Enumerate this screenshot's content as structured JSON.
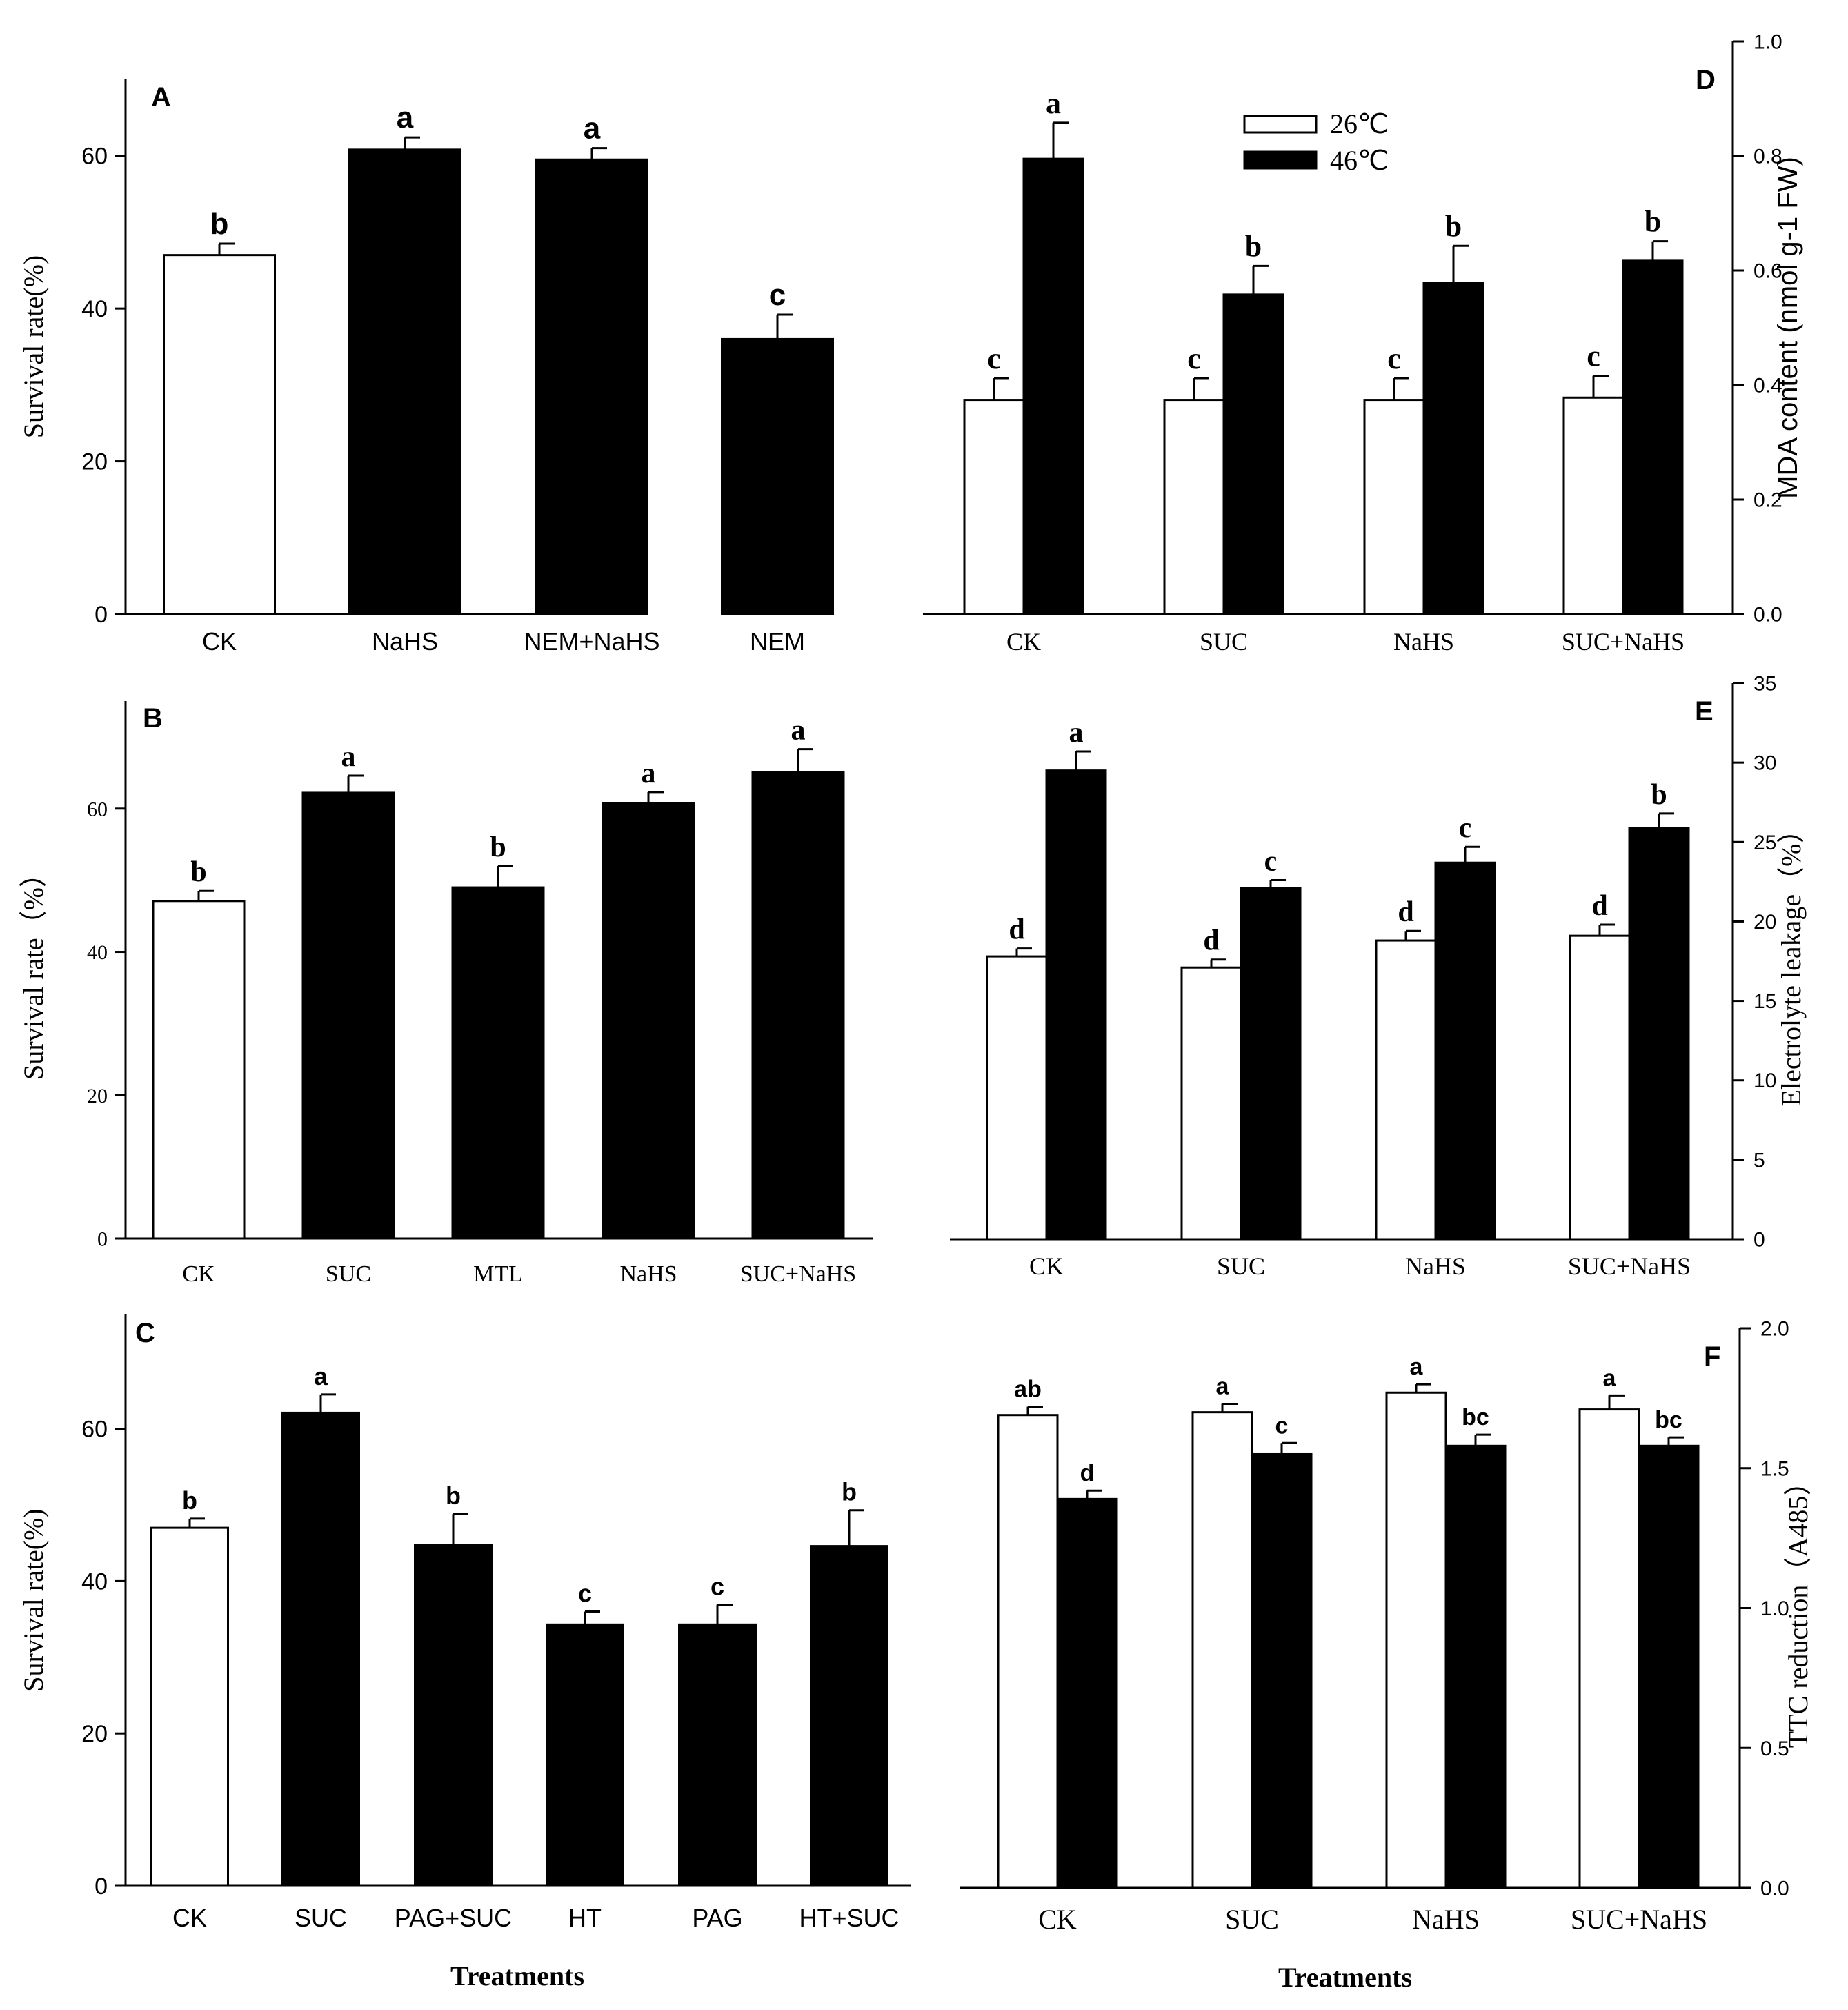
{
  "figure": {
    "bottom_labels": {
      "left": "Treatments",
      "right": "Treatments"
    }
  },
  "legend": {
    "items": [
      {
        "label": "26℃",
        "color": "#ffffff"
      },
      {
        "label": "46℃",
        "color": "#000000"
      }
    ]
  },
  "chart_data": [
    {
      "id": "A",
      "panel_label": "A",
      "type": "bar",
      "font": "sans",
      "categories": [
        "CK",
        "NaHS",
        "NEM+NaHS",
        "NEM"
      ],
      "series": [
        {
          "values": [
            47,
            60.8,
            59.5,
            36
          ],
          "errors": [
            1.5,
            1.6,
            1.5,
            3.2
          ],
          "letters": [
            "b",
            "a",
            "a",
            "c"
          ],
          "colors": [
            "#ffffff",
            "#000000",
            "#000000",
            "#000000"
          ]
        }
      ],
      "ylabel": "Survival rate(%)",
      "ylim": [
        0,
        70
      ],
      "yticks": [
        0,
        20,
        40,
        60
      ],
      "axis_side": "left"
    },
    {
      "id": "B",
      "panel_label": "B",
      "type": "bar",
      "font": "serif",
      "categories": [
        "CK",
        "SUC",
        "MTL",
        "NaHS",
        "SUC+NaHS"
      ],
      "series": [
        {
          "values": [
            47.1,
            62.2,
            49,
            60.8,
            65.1
          ],
          "errors": [
            1.4,
            2.4,
            3,
            1.5,
            3.2
          ],
          "letters": [
            "b",
            "a",
            "b",
            "a",
            "a"
          ],
          "colors": [
            "#ffffff",
            "#000000",
            "#000000",
            "#000000",
            "#000000"
          ]
        }
      ],
      "ylabel": "Survival rate（%）",
      "ylim": [
        0,
        75
      ],
      "yticks": [
        0,
        20,
        40,
        60
      ],
      "axis_side": "left"
    },
    {
      "id": "C",
      "panel_label": "C",
      "type": "bar",
      "font": "sans",
      "categories": [
        "CK",
        "SUC",
        "PAG+SUC",
        "HT",
        "PAG",
        "HT+SUC"
      ],
      "series": [
        {
          "values": [
            47,
            62.1,
            44.7,
            34.3,
            34.3,
            44.6
          ],
          "errors": [
            1.2,
            2.4,
            4.1,
            1.7,
            2.6,
            4.7
          ],
          "letters": [
            "b",
            "a",
            "b",
            "c",
            "c",
            "b"
          ],
          "colors": [
            "#ffffff",
            "#000000",
            "#000000",
            "#000000",
            "#000000",
            "#000000"
          ]
        }
      ],
      "ylabel": "Survival rate(%)",
      "ylim": [
        0,
        75
      ],
      "yticks": [
        0,
        20,
        40,
        60
      ],
      "axis_side": "left"
    },
    {
      "id": "D",
      "panel_label": "D",
      "type": "bar",
      "font": "serif",
      "categories": [
        "CK",
        "SUC",
        "NaHS",
        "SUC+NaHS"
      ],
      "series": [
        {
          "name": "26℃",
          "values": [
            0.374,
            0.374,
            0.374,
            0.378
          ],
          "errors": [
            0.038,
            0.038,
            0.038,
            0.038
          ],
          "letters": [
            "c",
            "c",
            "c",
            "c"
          ],
          "color": "#ffffff"
        },
        {
          "name": "46℃",
          "values": [
            0.795,
            0.558,
            0.578,
            0.617
          ],
          "errors": [
            0.063,
            0.05,
            0.065,
            0.034
          ],
          "letters": [
            "a",
            "b",
            "b",
            "b"
          ],
          "color": "#000000"
        }
      ],
      "ylabel": "MDA content (nmol g-1 FW)",
      "ylim": [
        0,
        1.0
      ],
      "yticks": [
        0.0,
        0.2,
        0.4,
        0.6,
        0.8,
        1.0
      ],
      "axis_side": "right"
    },
    {
      "id": "E",
      "panel_label": "E",
      "type": "bar",
      "font": "serif",
      "categories": [
        "CK",
        "SUC",
        "NaHS",
        "SUC+NaHS"
      ],
      "series": [
        {
          "name": "26℃",
          "values": [
            17.8,
            17.1,
            18.8,
            19.1
          ],
          "errors": [
            0.5,
            0.5,
            0.6,
            0.7
          ],
          "letters": [
            "d",
            "d",
            "d",
            "d"
          ],
          "color": "#ffffff"
        },
        {
          "name": "46℃",
          "values": [
            29.5,
            22.1,
            23.7,
            25.9
          ],
          "errors": [
            1.2,
            0.5,
            1.0,
            0.9
          ],
          "letters": [
            "a",
            "c",
            "c",
            "b"
          ],
          "color": "#000000"
        }
      ],
      "ylabel": "Electrolyte leakage（%）",
      "ylim": [
        0,
        35
      ],
      "yticks": [
        0,
        5,
        10,
        15,
        20,
        25,
        30,
        35
      ],
      "axis_side": "right"
    },
    {
      "id": "F",
      "panel_label": "F",
      "type": "bar",
      "font": "mixed",
      "categories": [
        "CK",
        "SUC",
        "NaHS",
        "SUC+NaHS"
      ],
      "series": [
        {
          "name": "26℃",
          "values": [
            1.69,
            1.7,
            1.77,
            1.71
          ],
          "errors": [
            0.03,
            0.03,
            0.03,
            0.05
          ],
          "letters": [
            "ab",
            "a",
            "a",
            "a"
          ],
          "color": "#ffffff"
        },
        {
          "name": "46℃",
          "values": [
            1.39,
            1.55,
            1.58,
            1.58
          ],
          "errors": [
            0.03,
            0.04,
            0.04,
            0.03
          ],
          "letters": [
            "d",
            "c",
            "bc",
            "bc"
          ],
          "color": "#000000"
        }
      ],
      "ylabel": "TTC reduction（A485）",
      "ylim": [
        0,
        2.0
      ],
      "yticks": [
        0.0,
        0.5,
        1.0,
        1.5,
        2.0
      ],
      "axis_side": "right"
    }
  ]
}
